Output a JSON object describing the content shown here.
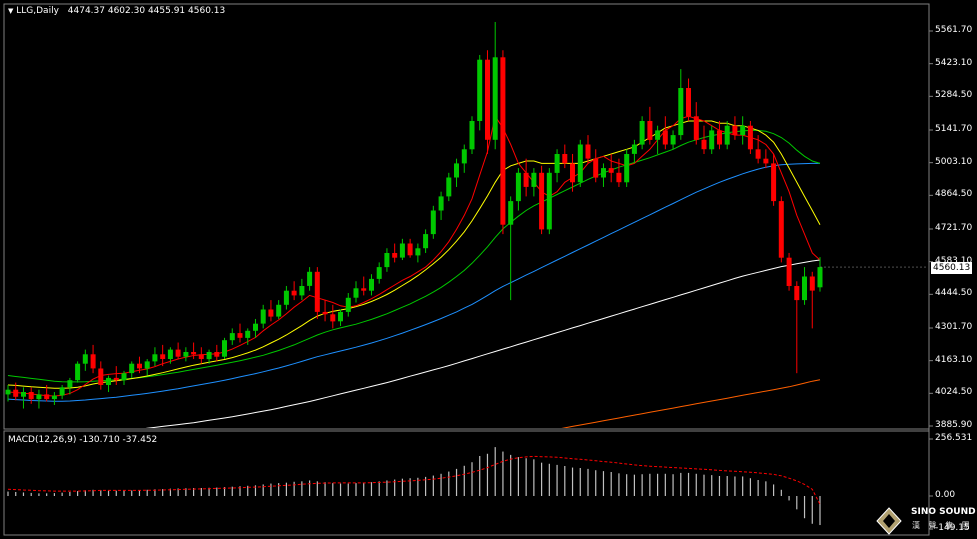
{
  "header": {
    "symbol": "LLG,Daily",
    "ohlc": "4474.37 4602.30 4455.91 4560.13"
  },
  "price_axis": {
    "ticks": [
      "5561.70",
      "5423.10",
      "5284.50",
      "5141.70",
      "5003.10",
      "4864.50",
      "4721.70",
      "4583.10",
      "4444.50",
      "4301.70",
      "4163.10",
      "4024.50",
      "3885.90"
    ],
    "current": "4560.13"
  },
  "macd": {
    "label": "MACD(12,26,9) -130.710 -37.452",
    "ticks": [
      "256.531",
      "0.00",
      "-149.15"
    ]
  },
  "logo": {
    "name": "SINO SOUND",
    "sub": "漢 聲 集 團"
  },
  "colors": {
    "bull": "#00c800",
    "bear": "#ff0000",
    "ma_fast": "#ff0000",
    "ma_yellow": "#ffff00",
    "ma_green": "#00c800",
    "ma_blue": "#1e90ff",
    "ma_white": "#ffffff",
    "ma_orange": "#ff6000",
    "signal": "#ff0000"
  },
  "chart_data": {
    "type": "candlestick",
    "ylim": [
      3885.9,
      5620
    ],
    "candles": [
      [
        4020,
        4060,
        3990,
        4040
      ],
      [
        4040,
        4070,
        3995,
        4010
      ],
      [
        4010,
        4050,
        3960,
        4030
      ],
      [
        4030,
        4050,
        3980,
        4000
      ],
      [
        4000,
        4040,
        3960,
        4020
      ],
      [
        4020,
        4060,
        3990,
        4000
      ],
      [
        4000,
        4030,
        3975,
        4015
      ],
      [
        4015,
        4060,
        4000,
        4050
      ],
      [
        4050,
        4090,
        4020,
        4080
      ],
      [
        4080,
        4160,
        4070,
        4150
      ],
      [
        4150,
        4210,
        4120,
        4190
      ],
      [
        4190,
        4230,
        4110,
        4130
      ],
      [
        4130,
        4160,
        4040,
        4060
      ],
      [
        4060,
        4100,
        4030,
        4090
      ],
      [
        4090,
        4140,
        4060,
        4080
      ],
      [
        4080,
        4120,
        4060,
        4110
      ],
      [
        4110,
        4160,
        4090,
        4150
      ],
      [
        4150,
        4180,
        4110,
        4130
      ],
      [
        4130,
        4170,
        4100,
        4160
      ],
      [
        4160,
        4220,
        4140,
        4190
      ],
      [
        4190,
        4230,
        4140,
        4170
      ],
      [
        4170,
        4220,
        4150,
        4210
      ],
      [
        4210,
        4240,
        4170,
        4180
      ],
      [
        4180,
        4220,
        4160,
        4200
      ],
      [
        4200,
        4240,
        4170,
        4190
      ],
      [
        4190,
        4220,
        4150,
        4170
      ],
      [
        4170,
        4210,
        4150,
        4200
      ],
      [
        4200,
        4230,
        4160,
        4180
      ],
      [
        4180,
        4260,
        4170,
        4250
      ],
      [
        4250,
        4300,
        4230,
        4280
      ],
      [
        4280,
        4320,
        4240,
        4260
      ],
      [
        4260,
        4300,
        4230,
        4290
      ],
      [
        4290,
        4340,
        4260,
        4320
      ],
      [
        4320,
        4400,
        4300,
        4380
      ],
      [
        4380,
        4420,
        4330,
        4350
      ],
      [
        4350,
        4420,
        4340,
        4400
      ],
      [
        4400,
        4480,
        4380,
        4460
      ],
      [
        4460,
        4500,
        4420,
        4440
      ],
      [
        4440,
        4510,
        4420,
        4480
      ],
      [
        4480,
        4560,
        4460,
        4540
      ],
      [
        4540,
        4560,
        4340,
        4370
      ],
      [
        4370,
        4420,
        4330,
        4360
      ],
      [
        4360,
        4400,
        4300,
        4330
      ],
      [
        4330,
        4380,
        4310,
        4370
      ],
      [
        4370,
        4450,
        4350,
        4430
      ],
      [
        4430,
        4500,
        4410,
        4470
      ],
      [
        4470,
        4520,
        4440,
        4460
      ],
      [
        4460,
        4530,
        4440,
        4510
      ],
      [
        4510,
        4580,
        4490,
        4560
      ],
      [
        4560,
        4640,
        4540,
        4620
      ],
      [
        4620,
        4660,
        4580,
        4600
      ],
      [
        4600,
        4680,
        4590,
        4660
      ],
      [
        4660,
        4680,
        4600,
        4610
      ],
      [
        4610,
        4660,
        4580,
        4640
      ],
      [
        4640,
        4720,
        4620,
        4700
      ],
      [
        4700,
        4820,
        4680,
        4800
      ],
      [
        4800,
        4880,
        4760,
        4860
      ],
      [
        4860,
        4960,
        4840,
        4940
      ],
      [
        4940,
        5020,
        4900,
        5000
      ],
      [
        5000,
        5080,
        4960,
        5060
      ],
      [
        5060,
        5200,
        5040,
        5180
      ],
      [
        5180,
        5460,
        5140,
        5440
      ],
      [
        5440,
        5480,
        5040,
        5100
      ],
      [
        5100,
        5600,
        5060,
        5450
      ],
      [
        5450,
        5480,
        4700,
        4740
      ],
      [
        4740,
        4860,
        4420,
        4840
      ],
      [
        4840,
        4980,
        4800,
        4960
      ],
      [
        4960,
        5020,
        4860,
        4900
      ],
      [
        4900,
        4980,
        4860,
        4960
      ],
      [
        4960,
        4990,
        4700,
        4720
      ],
      [
        4720,
        4980,
        4700,
        4960
      ],
      [
        4960,
        5060,
        4920,
        5040
      ],
      [
        5040,
        5080,
        4980,
        5000
      ],
      [
        5000,
        5040,
        4880,
        4920
      ],
      [
        4920,
        5100,
        4900,
        5080
      ],
      [
        5080,
        5120,
        5000,
        5020
      ],
      [
        5020,
        5060,
        4920,
        4940
      ],
      [
        4940,
        5000,
        4900,
        4980
      ],
      [
        4980,
        5040,
        4920,
        4960
      ],
      [
        4960,
        5020,
        4900,
        4920
      ],
      [
        4920,
        5060,
        4900,
        5040
      ],
      [
        5040,
        5100,
        5000,
        5080
      ],
      [
        5080,
        5200,
        5060,
        5180
      ],
      [
        5180,
        5240,
        5080,
        5100
      ],
      [
        5100,
        5160,
        5040,
        5140
      ],
      [
        5140,
        5200,
        5060,
        5080
      ],
      [
        5080,
        5140,
        5060,
        5120
      ],
      [
        5120,
        5400,
        5100,
        5320
      ],
      [
        5320,
        5360,
        5180,
        5200
      ],
      [
        5200,
        5260,
        5080,
        5100
      ],
      [
        5100,
        5160,
        5040,
        5060
      ],
      [
        5060,
        5160,
        5040,
        5140
      ],
      [
        5140,
        5180,
        5060,
        5080
      ],
      [
        5080,
        5180,
        5060,
        5160
      ],
      [
        5160,
        5200,
        5100,
        5120
      ],
      [
        5120,
        5200,
        5080,
        5160
      ],
      [
        5160,
        5180,
        5040,
        5060
      ],
      [
        5060,
        5120,
        5000,
        5020
      ],
      [
        5020,
        5060,
        4980,
        5000
      ],
      [
        5000,
        5040,
        4820,
        4840
      ],
      [
        4840,
        4860,
        4580,
        4600
      ],
      [
        4600,
        4620,
        4460,
        4480
      ],
      [
        4480,
        4500,
        4110,
        4420
      ],
      [
        4420,
        4560,
        4400,
        4520
      ],
      [
        4520,
        4540,
        4300,
        4460
      ],
      [
        4474.37,
        4602.3,
        4455.91,
        4560.13
      ]
    ],
    "macd_hist": [
      20,
      18,
      16,
      14,
      12,
      12,
      13,
      15,
      18,
      22,
      26,
      28,
      26,
      24,
      24,
      24,
      25,
      26,
      28,
      30,
      31,
      33,
      34,
      35,
      36,
      36,
      37,
      38,
      40,
      42,
      44,
      46,
      48,
      52,
      56,
      58,
      60,
      64,
      66,
      70,
      66,
      62,
      58,
      56,
      56,
      58,
      60,
      62,
      66,
      70,
      74,
      78,
      80,
      82,
      86,
      92,
      100,
      110,
      122,
      136,
      152,
      180,
      190,
      220,
      200,
      185,
      175,
      170,
      165,
      150,
      145,
      140,
      135,
      128,
      126,
      122,
      116,
      112,
      108,
      102,
      98,
      96,
      98,
      100,
      100,
      100,
      98,
      104,
      104,
      100,
      96,
      94,
      90,
      90,
      88,
      88,
      80,
      72,
      66,
      52,
      28,
      -20,
      -60,
      -100,
      -125,
      -130.71
    ],
    "macd_signal": [
      30,
      29,
      27,
      26,
      24,
      23,
      22,
      22,
      22,
      22,
      23,
      24,
      25,
      25,
      25,
      25,
      25,
      25,
      26,
      26,
      27,
      28,
      29,
      30,
      31,
      32,
      33,
      34,
      35,
      36,
      37,
      39,
      40,
      42,
      44,
      46,
      48,
      50,
      53,
      55,
      57,
      58,
      59,
      59,
      59,
      59,
      59,
      60,
      61,
      62,
      64,
      66,
      68,
      70,
      73,
      76,
      80,
      85,
      91,
      98,
      106,
      116,
      128,
      142,
      156,
      166,
      172,
      176,
      178,
      177,
      176,
      174,
      171,
      168,
      165,
      162,
      159,
      155,
      152,
      148,
      144,
      140,
      137,
      134,
      132,
      130,
      128,
      126,
      124,
      122,
      120,
      118,
      115,
      113,
      111,
      109,
      107,
      104,
      101,
      97,
      91,
      80,
      68,
      52,
      30,
      -37.452
    ],
    "ma_fast": [
      4030,
      4028,
      4025,
      4022,
      4018,
      4015,
      4013,
      4016,
      4024,
      4040,
      4062,
      4085,
      4100,
      4105,
      4108,
      4110,
      4116,
      4122,
      4128,
      4138,
      4150,
      4160,
      4170,
      4178,
      4185,
      4188,
      4190,
      4192,
      4200,
      4212,
      4228,
      4244,
      4262,
      4290,
      4314,
      4336,
      4362,
      4390,
      4414,
      4440,
      4430,
      4420,
      4410,
      4396,
      4390,
      4396,
      4410,
      4426,
      4444,
      4464,
      4484,
      4504,
      4520,
      4540,
      4560,
      4590,
      4626,
      4668,
      4720,
      4780,
      4850,
      4950,
      5050,
      5200,
      5150,
      5080,
      5000,
      4960,
      4920,
      4880,
      4860,
      4880,
      4920,
      4940,
      4960,
      5000,
      5020,
      5030,
      5010,
      5000,
      4990,
      5000,
      5030,
      5060,
      5100,
      5140,
      5160,
      5190,
      5200,
      5190,
      5180,
      5160,
      5140,
      5130,
      5120,
      5120,
      5110,
      5100,
      5080,
      5040,
      4960,
      4880,
      4780,
      4700,
      4620,
      4590
    ],
    "ma_yellow": [
      4060,
      4058,
      4055,
      4052,
      4050,
      4048,
      4046,
      4046,
      4047,
      4050,
      4056,
      4064,
      4070,
      4074,
      4078,
      4082,
      4087,
      4092,
      4098,
      4105,
      4112,
      4120,
      4128,
      4136,
      4144,
      4150,
      4156,
      4162,
      4168,
      4176,
      4186,
      4196,
      4208,
      4222,
      4238,
      4254,
      4272,
      4292,
      4312,
      4334,
      4352,
      4364,
      4372,
      4378,
      4384,
      4392,
      4402,
      4414,
      4428,
      4444,
      4462,
      4482,
      4502,
      4524,
      4548,
      4574,
      4602,
      4634,
      4670,
      4710,
      4756,
      4808,
      4862,
      4920,
      4970,
      4990,
      5000,
      5010,
      5010,
      5000,
      5000,
      5000,
      5000,
      5000,
      5000,
      5010,
      5020,
      5030,
      5040,
      5050,
      5060,
      5070,
      5090,
      5110,
      5130,
      5150,
      5160,
      5170,
      5180,
      5180,
      5180,
      5180,
      5170,
      5170,
      5160,
      5160,
      5150,
      5140,
      5120,
      5090,
      5040,
      4980,
      4920,
      4860,
      4800,
      4740
    ],
    "ma_green": [
      4100,
      4096,
      4092,
      4088,
      4084,
      4080,
      4076,
      4074,
      4073,
      4073,
      4074,
      4076,
      4078,
      4080,
      4082,
      4085,
      4088,
      4091,
      4095,
      4099,
      4104,
      4109,
      4114,
      4120,
      4126,
      4132,
      4138,
      4144,
      4150,
      4156,
      4163,
      4170,
      4178,
      4186,
      4196,
      4206,
      4218,
      4230,
      4244,
      4258,
      4272,
      4284,
      4294,
      4302,
      4310,
      4318,
      4328,
      4338,
      4350,
      4362,
      4376,
      4390,
      4404,
      4420,
      4436,
      4454,
      4474,
      4496,
      4520,
      4546,
      4576,
      4610,
      4646,
      4686,
      4722,
      4750,
      4776,
      4800,
      4820,
      4836,
      4852,
      4868,
      4884,
      4900,
      4916,
      4932,
      4946,
      4960,
      4972,
      4984,
      4994,
      5004,
      5014,
      5024,
      5036,
      5048,
      5060,
      5076,
      5090,
      5100,
      5110,
      5118,
      5124,
      5130,
      5134,
      5138,
      5140,
      5140,
      5136,
      5126,
      5110,
      5086,
      5056,
      5030,
      5010,
      5000
    ],
    "ma_blue": [
      4000,
      3998,
      3996,
      3994,
      3993,
      3992,
      3991,
      3991,
      3992,
      3994,
      3996,
      3999,
      4002,
      4005,
      4008,
      4012,
      4016,
      4020,
      4024,
      4029,
      4034,
      4039,
      4044,
      4050,
      4056,
      4062,
      4068,
      4074,
      4080,
      4087,
      4094,
      4101,
      4108,
      4116,
      4124,
      4132,
      4141,
      4150,
      4160,
      4170,
      4180,
      4188,
      4196,
      4204,
      4212,
      4220,
      4229,
      4238,
      4248,
      4258,
      4269,
      4280,
      4292,
      4304,
      4316,
      4329,
      4342,
      4356,
      4370,
      4386,
      4402,
      4420,
      4440,
      4460,
      4478,
      4494,
      4510,
      4526,
      4542,
      4558,
      4574,
      4590,
      4606,
      4622,
      4638,
      4654,
      4670,
      4686,
      4702,
      4718,
      4734,
      4750,
      4766,
      4782,
      4798,
      4814,
      4830,
      4846,
      4862,
      4878,
      4892,
      4906,
      4920,
      4932,
      4944,
      4956,
      4966,
      4976,
      4984,
      4990,
      4994,
      4996,
      4998,
      4999,
      5000,
      5000
    ],
    "ma_white": [
      3830,
      3832,
      3834,
      3836,
      3838,
      3840,
      3842,
      3844,
      3846,
      3848,
      3851,
      3854,
      3857,
      3860,
      3863,
      3866,
      3869,
      3872,
      3876,
      3880,
      3884,
      3888,
      3892,
      3896,
      3900,
      3905,
      3910,
      3915,
      3920,
      3925,
      3931,
      3937,
      3943,
      3949,
      3955,
      3962,
      3969,
      3976,
      3983,
      3990,
      3998,
      4006,
      4014,
      4022,
      4030,
      4038,
      4046,
      4054,
      4062,
      4070,
      4079,
      4088,
      4097,
      4106,
      4115,
      4124,
      4133,
      4142,
      4152,
      4162,
      4172,
      4182,
      4192,
      4202,
      4212,
      4222,
      4232,
      4242,
      4252,
      4262,
      4272,
      4282,
      4292,
      4302,
      4312,
      4322,
      4332,
      4342,
      4352,
      4362,
      4372,
      4382,
      4392,
      4402,
      4412,
      4422,
      4432,
      4442,
      4452,
      4462,
      4472,
      4482,
      4492,
      4502,
      4512,
      4522,
      4530,
      4538,
      4546,
      4554,
      4562,
      4568,
      4574,
      4580,
      4586,
      4590
    ],
    "ma_orange": [
      3700,
      3702,
      3704,
      3706,
      3708,
      3710,
      3712,
      3714,
      3716,
      3718,
      3720,
      3722,
      3724,
      3726,
      3728,
      3730,
      3732,
      3734,
      3736,
      3738,
      3740,
      3742,
      3744,
      3746,
      3748,
      3750,
      3752,
      3754,
      3756,
      3758,
      3760,
      3762,
      3764,
      3766,
      3768,
      3770,
      3772,
      3774,
      3776,
      3778,
      3780,
      3782,
      3784,
      3786,
      3788,
      3790,
      3792,
      3794,
      3796,
      3798,
      3800,
      3802,
      3804,
      3806,
      3808,
      3810,
      3812,
      3814,
      3816,
      3818,
      3820,
      3822,
      3824,
      3826,
      3830,
      3836,
      3842,
      3848,
      3854,
      3860,
      3866,
      3872,
      3878,
      3884,
      3890,
      3896,
      3902,
      3908,
      3914,
      3920,
      3926,
      3932,
      3938,
      3944,
      3950,
      3956,
      3962,
      3968,
      3974,
      3980,
      3986,
      3992,
      3998,
      4004,
      4010,
      4016,
      4022,
      4028,
      4034,
      4040,
      4046,
      4052,
      4060,
      4068,
      4076,
      4082
    ]
  }
}
